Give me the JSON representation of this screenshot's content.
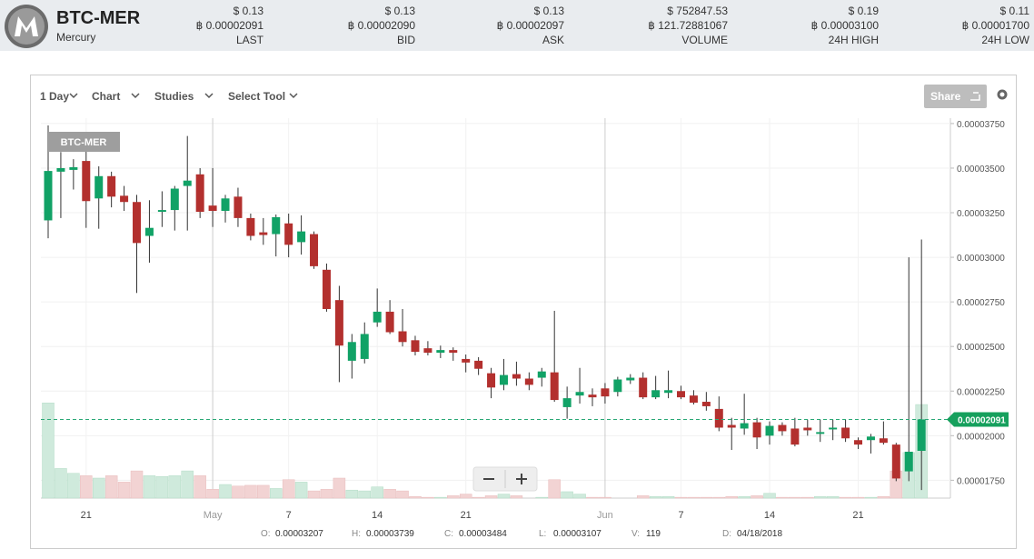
{
  "header": {
    "symbol": "BTC-MER",
    "name": "Mercury",
    "stats": [
      {
        "usd": "$ 0.13",
        "btc": "฿ 0.00002091",
        "label": "LAST"
      },
      {
        "usd": "$ 0.13",
        "btc": "฿ 0.00002090",
        "label": "BID"
      },
      {
        "usd": "$ 0.13",
        "btc": "฿ 0.00002097",
        "label": "ASK"
      },
      {
        "usd": "$ 752847.53",
        "btc": "฿ 121.72881067",
        "label": "VOLUME"
      },
      {
        "usd": "$ 0.19",
        "btc": "฿ 0.00003100",
        "label": "24H HIGH"
      },
      {
        "usd": "$ 0.11",
        "btc": "฿ 0.00001700",
        "label": "24H LOW"
      }
    ]
  },
  "toolbar": {
    "period": "1 Day",
    "chart": "Chart",
    "studies": "Studies",
    "tool": "Select Tool",
    "share": "Share"
  },
  "chart_data": {
    "type": "candlestick",
    "badge": "BTC-MER",
    "categories": [
      null,
      null,
      null,
      "21",
      null,
      null,
      null,
      null,
      null,
      null,
      null,
      null,
      null,
      "May",
      null,
      null,
      null,
      null,
      null,
      "7",
      null,
      null,
      null,
      null,
      null,
      null,
      "14",
      null,
      null,
      null,
      null,
      null,
      null,
      "21",
      null,
      null,
      null,
      null,
      null,
      null,
      null,
      null,
      null,
      null,
      "Jun",
      null,
      null,
      null,
      null,
      null,
      "7",
      null,
      null,
      null,
      null,
      null,
      null,
      "14",
      null,
      null,
      null,
      null,
      null,
      null,
      "21",
      null,
      null,
      null,
      null,
      null
    ],
    "open": [
      3.207e-05,
      3.48e-05,
      3.49e-05,
      3.54e-05,
      3.33e-05,
      3.455e-05,
      3.345e-05,
      3.31e-05,
      3.12e-05,
      3.255e-05,
      3.265e-05,
      3.4e-05,
      3.465e-05,
      3.29e-05,
      3.26e-05,
      3.34e-05,
      3.22e-05,
      3.14e-05,
      3.13e-05,
      3.19e-05,
      3.085e-05,
      3.13e-05,
      2.93e-05,
      2.76e-05,
      2.42e-05,
      2.43e-05,
      2.635e-05,
      2.695e-05,
      2.585e-05,
      2.535e-05,
      2.49e-05,
      2.465e-05,
      2.48e-05,
      2.43e-05,
      2.42e-05,
      2.35e-05,
      2.285e-05,
      2.345e-05,
      2.32e-05,
      2.325e-05,
      2.355e-05,
      2.16e-05,
      2.225e-05,
      2.23e-05,
      2.265e-05,
      2.245e-05,
      2.31e-05,
      2.325e-05,
      2.215e-05,
      2.24e-05,
      2.25e-05,
      2.225e-05,
      2.19e-05,
      2.15e-05,
      2.06e-05,
      2.04e-05,
      2.075e-05,
      2e-05,
      2.06e-05,
      2.04e-05,
      2.045e-05,
      2.01e-05,
      2.035e-05,
      2.045e-05,
      1.975e-05,
      1.975e-05,
      1.985e-05,
      1.95e-05,
      1.8e-05,
      1.915e-05
    ],
    "high": [
      3.739e-05,
      3.59e-05,
      3.55e-05,
      3.6e-05,
      3.51e-05,
      3.48e-05,
      3.4e-05,
      3.35e-05,
      3.32e-05,
      3.37e-05,
      3.4e-05,
      3.68e-05,
      3.5e-05,
      3.5e-05,
      3.35e-05,
      3.39e-05,
      3.245e-05,
      3.22e-05,
      3.24e-05,
      3.245e-05,
      3.235e-05,
      3.145e-05,
      2.965e-05,
      2.84e-05,
      2.57e-05,
      2.635e-05,
      2.825e-05,
      2.76e-05,
      2.71e-05,
      2.56e-05,
      2.53e-05,
      2.505e-05,
      2.495e-05,
      2.455e-05,
      2.44e-05,
      2.38e-05,
      2.43e-05,
      2.415e-05,
      2.355e-05,
      2.38e-05,
      2.7e-05,
      2.275e-05,
      2.38e-05,
      2.265e-05,
      2.295e-05,
      2.33e-05,
      2.345e-05,
      2.355e-05,
      2.335e-05,
      2.365e-05,
      2.28e-05,
      2.255e-05,
      2.245e-05,
      2.22e-05,
      2.1e-05,
      2.235e-05,
      2.1e-05,
      2.08e-05,
      2.075e-05,
      2.1e-05,
      2.09e-05,
      2.09e-05,
      2.09e-05,
      2.09e-05,
      1.99e-05,
      2.01e-05,
      2.08e-05,
      1.96e-05,
      3e-05,
      3.1e-05
    ],
    "low": [
      3.107e-05,
      3.22e-05,
      3.38e-05,
      3.165e-05,
      3.16e-05,
      3.28e-05,
      3.26e-05,
      2.8e-05,
      2.97e-05,
      3.17e-05,
      3.15e-05,
      3.15e-05,
      3.22e-05,
      3.17e-05,
      3.195e-05,
      3.17e-05,
      3.095e-05,
      3.07e-05,
      3.005e-05,
      3e-05,
      3.015e-05,
      2.935e-05,
      2.695e-05,
      2.3e-05,
      2.32e-05,
      2.405e-05,
      2.61e-05,
      2.57e-05,
      2.5e-05,
      2.45e-05,
      2.45e-05,
      2.435e-05,
      2.42e-05,
      2.355e-05,
      2.34e-05,
      2.21e-05,
      2.255e-05,
      2.28e-05,
      2.255e-05,
      2.275e-05,
      2.19e-05,
      2.095e-05,
      2.18e-05,
      2.165e-05,
      2.18e-05,
      2.22e-05,
      2.29e-05,
      2.205e-05,
      2.205e-05,
      2.21e-05,
      2.205e-05,
      2.175e-05,
      2.14e-05,
      2.025e-05,
      1.92e-05,
      2.005e-05,
      1.925e-05,
      1.95e-05,
      2e-05,
      1.94e-05,
      2e-05,
      1.965e-05,
      1.975e-05,
      1.965e-05,
      1.925e-05,
      1.9e-05,
      1.95e-05,
      1.745e-05,
      1.745e-05,
      1.695e-05
    ],
    "close": [
      3.484e-05,
      3.5e-05,
      3.505e-05,
      3.315e-05,
      3.455e-05,
      3.34e-05,
      3.31e-05,
      3.08e-05,
      3.165e-05,
      3.265e-05,
      3.385e-05,
      3.43e-05,
      3.255e-05,
      3.26e-05,
      3.33e-05,
      3.22e-05,
      3.12e-05,
      3.125e-05,
      3.225e-05,
      3.07e-05,
      3.145e-05,
      2.95e-05,
      2.71e-05,
      2.505e-05,
      2.525e-05,
      2.57e-05,
      2.695e-05,
      2.58e-05,
      2.525e-05,
      2.47e-05,
      2.465e-05,
      2.48e-05,
      2.465e-05,
      2.41e-05,
      2.375e-05,
      2.27e-05,
      2.34e-05,
      2.32e-05,
      2.285e-05,
      2.36e-05,
      2.2e-05,
      2.21e-05,
      2.245e-05,
      2.215e-05,
      2.22e-05,
      2.315e-05,
      2.325e-05,
      2.215e-05,
      2.255e-05,
      2.255e-05,
      2.215e-05,
      2.185e-05,
      2.165e-05,
      2.045e-05,
      2.045e-05,
      2.07e-05,
      1.99e-05,
      2.055e-05,
      2.025e-05,
      1.95e-05,
      2.03e-05,
      2.02e-05,
      2.045e-05,
      1.985e-05,
      1.95e-05,
      1.995e-05,
      1.96e-05,
      1.76e-05,
      1.91e-05,
      2.091e-05
    ],
    "volume": [
      119,
      37,
      31,
      28,
      25,
      28,
      20,
      34,
      28,
      27,
      28,
      34,
      28,
      11,
      17,
      15,
      16,
      16,
      12,
      23,
      20,
      9,
      11,
      25,
      10,
      9,
      14,
      11,
      9,
      2,
      1,
      1,
      3,
      5,
      1,
      3,
      5,
      3,
      0,
      1,
      23,
      8,
      5,
      1,
      1,
      0,
      0,
      3,
      2,
      2,
      1,
      1,
      1,
      1,
      2,
      2,
      3,
      6,
      1,
      1,
      1,
      2,
      2,
      1,
      1,
      1,
      2,
      34,
      57,
      117
    ],
    "ylim": [
      1.65e-05,
      3.78e-05
    ],
    "yticks": [
      {
        "value": 1.75e-05,
        "label": "0.00001750"
      },
      {
        "value": 2e-05,
        "label": "0.00002000"
      },
      {
        "value": 2.25e-05,
        "label": "0.00002250"
      },
      {
        "value": 2.5e-05,
        "label": "0.00002500"
      },
      {
        "value": 2.75e-05,
        "label": "0.00002750"
      },
      {
        "value": 3e-05,
        "label": "0.00003000"
      },
      {
        "value": 3.25e-05,
        "label": "0.00003250"
      },
      {
        "value": 3.5e-05,
        "label": "0.00003500"
      },
      {
        "value": 3.75e-05,
        "label": "0.00003750"
      }
    ],
    "volume_lim": [
      0,
      200
    ],
    "grid": true,
    "up_color": "#11a266",
    "down_color": "#b3302e",
    "readout": {
      "labels": [
        "O:",
        "H:",
        "C:",
        "L:",
        "V:",
        "D:"
      ],
      "date": "04/18/2018"
    }
  }
}
